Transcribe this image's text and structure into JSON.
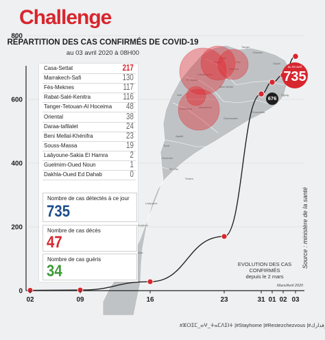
{
  "brand": {
    "logo": "Challenge",
    "tagline": ""
  },
  "header": {
    "title": "RÉPARTITION DES CAS CONFIRMÉS DE COVID-19",
    "subtitle": "au 03 avril 2020 à 08H00"
  },
  "regions": [
    {
      "name": "Casa-Settat",
      "value": "217"
    },
    {
      "name": "Marrakech-Safi",
      "value": "130"
    },
    {
      "name": "Fès-Meknes",
      "value": "117"
    },
    {
      "name": "Rabat-Salé-Kenitra",
      "value": "116"
    },
    {
      "name": "Tanger-Tetouan-Al Hoceima",
      "value": "48"
    },
    {
      "name": "Oriental",
      "value": "38"
    },
    {
      "name": "Daraa-tafilalet",
      "value": "24"
    },
    {
      "name": "Beni Mellal-Khénifra",
      "value": "23"
    },
    {
      "name": "Souss-Massa",
      "value": "19"
    },
    {
      "name": "Laâyoune-Sakia El Hamra",
      "value": "2"
    },
    {
      "name": "Guelmim-Oued Noun",
      "value": "1"
    },
    {
      "name": "Dakhla-Oued Ed Dahab",
      "value": "0"
    }
  ],
  "stats": {
    "detected_label": "Nombre de cas détectés à ce jour",
    "detected_value": "735",
    "deaths_label": "Nombre de cas décès",
    "deaths_value": "47",
    "recovered_label": "Nombre de cas guéris",
    "recovered_value": "34"
  },
  "badges": {
    "big_date": "au 03 avril",
    "big_value": "735",
    "small_value": "676"
  },
  "annotation": {
    "line1": "EVOLUTION DES CAS CONFIRMÉS",
    "line2": "depuis le 2 mars",
    "period": "Mars/Avril 2020"
  },
  "source": "Source : ministère de la santé",
  "footer": "#ⵣⵔⵉⵎ_ⴰⵖ_ⵜⴰⵎⴷⵉⵏⵜ |#Stayhome |#Restezchezvous |#خليك_فدارك",
  "colors": {
    "brand_red": "#d7262e",
    "line": "#222222",
    "bubble": "#e2232a",
    "blue": "#1f4e8c",
    "green": "#3e9a38"
  },
  "map_labels": [
    "Tanger",
    "Tétouan",
    "Oujda",
    "Rabat",
    "Salé",
    "Fès",
    "Meknès",
    "Casablanca",
    "El Jadida",
    "Beni Mellal",
    "Safi",
    "Marrakech",
    "Essaouira",
    "Ouarzazate",
    "Errachidia",
    "Figuig",
    "Agadir",
    "Tiznit",
    "Guelmim",
    "Tan-Tan",
    "Smara",
    "Laâyoune",
    "Boujdour",
    "Dakhla"
  ],
  "chart_data": {
    "type": "line",
    "title": "EVOLUTION DES CAS CONFIRMÉS",
    "subtitle": "depuis le 2 mars",
    "xlabel": "Mars/Avril 2020",
    "ylabel": "",
    "x_ticks": [
      "02",
      "09",
      "16",
      "23",
      "31",
      "01",
      "02",
      "03"
    ],
    "y_ticks": [
      0,
      200,
      400,
      600,
      800
    ],
    "ylim": [
      0,
      860
    ],
    "grid": true,
    "series": [
      {
        "name": "",
        "x": [
          "2020-03-02",
          "2020-03-09",
          "2020-03-16",
          "2020-03-23",
          "2020-03-31",
          "2020-04-01",
          "2020-04-02",
          "2020-04-03"
        ],
        "y": [
          1,
          2,
          28,
          170,
          617,
          654,
          676,
          735
        ]
      }
    ]
  }
}
